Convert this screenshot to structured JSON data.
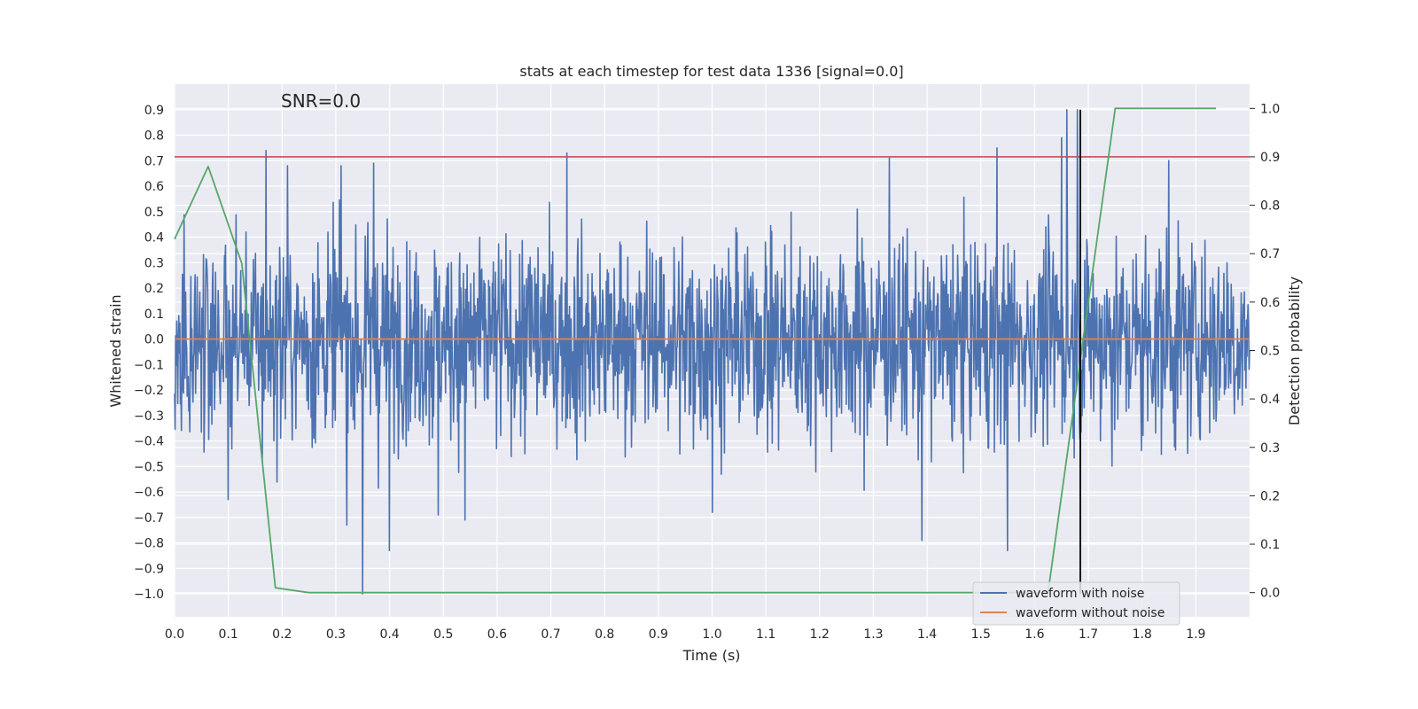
{
  "chart_data": {
    "type": "line",
    "title": "stats at each timestep for test data 1336 [signal=0.0]",
    "annotation": "SNR=0.0",
    "xlabel": "Time (s)",
    "ylabel_left": "Whitened strain",
    "ylabel_right": "Detection probability",
    "xlim": [
      0.0,
      2.0
    ],
    "ylim_left": [
      -1.09,
      1.0
    ],
    "ylim_right": [
      -0.05,
      1.05
    ],
    "x_ticks": [
      0.0,
      0.1,
      0.2,
      0.3,
      0.4,
      0.5,
      0.6,
      0.7,
      0.8,
      0.9,
      1.0,
      1.1,
      1.2,
      1.3,
      1.4,
      1.5,
      1.6,
      1.7,
      1.8,
      1.9
    ],
    "y_ticks_left": [
      -1.0,
      -0.9,
      -0.8,
      -0.7,
      -0.6,
      -0.5,
      -0.4,
      -0.3,
      -0.2,
      -0.1,
      0.0,
      0.1,
      0.2,
      0.3,
      0.4,
      0.5,
      0.6,
      0.7,
      0.8,
      0.9
    ],
    "y_ticks_right": [
      0.0,
      0.1,
      0.2,
      0.3,
      0.4,
      0.5,
      0.6,
      0.7,
      0.8,
      0.9,
      1.0
    ],
    "grid": true,
    "legend_position": "lower-right",
    "series": [
      {
        "name": "waveform with noise",
        "color": "#4c72b0",
        "axis": "left",
        "kind": "noise",
        "x_range": [
          0.0,
          2.0
        ],
        "n_points": 2048,
        "approx_std": 0.22,
        "approx_min": -1.0,
        "approx_max": 0.9,
        "peaks": [
          {
            "x": 0.17,
            "y": 0.74
          },
          {
            "x": 0.21,
            "y": 0.68
          },
          {
            "x": 0.31,
            "y": 0.68
          },
          {
            "x": 0.37,
            "y": 0.69
          },
          {
            "x": 0.73,
            "y": 0.73
          },
          {
            "x": 1.53,
            "y": 0.75
          },
          {
            "x": 1.65,
            "y": 0.79
          },
          {
            "x": 1.66,
            "y": 0.9
          },
          {
            "x": 1.68,
            "y": 0.9
          },
          {
            "x": 1.33,
            "y": 0.71
          },
          {
            "x": 1.85,
            "y": 0.7
          }
        ],
        "troughs": [
          {
            "x": 0.35,
            "y": -1.0
          },
          {
            "x": 0.32,
            "y": -0.73
          },
          {
            "x": 0.4,
            "y": -0.83
          },
          {
            "x": 0.49,
            "y": -0.69
          },
          {
            "x": 0.54,
            "y": -0.71
          },
          {
            "x": 1.39,
            "y": -0.79
          },
          {
            "x": 1.55,
            "y": -0.83
          },
          {
            "x": 0.1,
            "y": -0.63
          },
          {
            "x": 1.0,
            "y": -0.68
          }
        ]
      },
      {
        "name": "waveform without noise",
        "color": "#dd8452",
        "axis": "left",
        "x": [
          0.0,
          2.0
        ],
        "y": [
          0.0,
          0.0
        ]
      },
      {
        "name": "",
        "color": "#55a868",
        "axis": "right",
        "x": [
          0.0,
          0.0625,
          0.125,
          0.1875,
          0.25,
          0.3125,
          1.5,
          1.5625,
          1.625,
          1.6875,
          1.75,
          1.8125,
          1.875,
          1.9375
        ],
        "y": [
          0.73,
          0.88,
          0.68,
          0.01,
          0.0,
          0.0,
          0.0,
          0.0,
          0.0,
          0.5,
          1.0,
          1.0,
          1.0,
          1.0
        ]
      }
    ],
    "threshold_line": {
      "color": "#c44e52",
      "axis": "right",
      "y": 0.9
    },
    "vertical_line": {
      "color": "#000000",
      "x": 1.685,
      "y_range": [
        -1.0,
        0.9
      ]
    }
  }
}
